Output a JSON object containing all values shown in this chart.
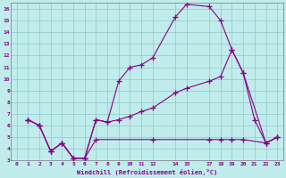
{
  "xlabel": "Windchill (Refroidissement éolien,°C)",
  "xlim": [
    -0.5,
    23.5
  ],
  "ylim": [
    3,
    16.5
  ],
  "background_color": "#c0ecec",
  "grid_color": "#99cccc",
  "line_color": "#880088",
  "line1_x": [
    1,
    2,
    3,
    4,
    5,
    6,
    7,
    8,
    9,
    10,
    11,
    12,
    14,
    15,
    17,
    18,
    19,
    20,
    21,
    22,
    23
  ],
  "line1_y": [
    6.5,
    6.0,
    3.8,
    4.5,
    3.2,
    3.2,
    6.5,
    6.3,
    9.8,
    11.0,
    11.2,
    11.8,
    15.3,
    16.4,
    16.2,
    15.0,
    12.5,
    10.5,
    6.5,
    4.5,
    5.0
  ],
  "line2_x": [
    1,
    2,
    3,
    4,
    5,
    6,
    7,
    8,
    9,
    10,
    11,
    12,
    14,
    15,
    17,
    18,
    19,
    20,
    22,
    23
  ],
  "line2_y": [
    6.5,
    6.0,
    3.8,
    4.5,
    3.2,
    3.2,
    6.5,
    6.3,
    6.5,
    6.8,
    7.2,
    7.5,
    8.8,
    9.2,
    9.8,
    10.2,
    12.5,
    10.5,
    4.5,
    5.0
  ],
  "line3_x": [
    1,
    2,
    3,
    4,
    5,
    6,
    7,
    12,
    17,
    18,
    19,
    20,
    22,
    23
  ],
  "line3_y": [
    6.5,
    6.0,
    3.8,
    4.5,
    3.2,
    3.2,
    4.8,
    4.8,
    4.8,
    4.8,
    4.8,
    4.8,
    4.5,
    5.0
  ],
  "xtick_positions": [
    0,
    1,
    2,
    3,
    4,
    5,
    6,
    7,
    8,
    9,
    10,
    11,
    12,
    14,
    15,
    17,
    18,
    19,
    20,
    21,
    22,
    23
  ],
  "xtick_labels": [
    "0",
    "1",
    "2",
    "3",
    "4",
    "5",
    "6",
    "7",
    "8",
    "9",
    "10",
    "11",
    "12",
    "14",
    "15",
    "17",
    "18",
    "19",
    "20",
    "21",
    "22",
    "23"
  ],
  "ytick_positions": [
    3,
    4,
    5,
    6,
    7,
    8,
    9,
    10,
    11,
    12,
    13,
    14,
    15,
    16
  ],
  "ytick_labels": [
    "3",
    "4",
    "5",
    "6",
    "7",
    "8",
    "9",
    "10",
    "11",
    "12",
    "13",
    "14",
    "15",
    "16"
  ]
}
